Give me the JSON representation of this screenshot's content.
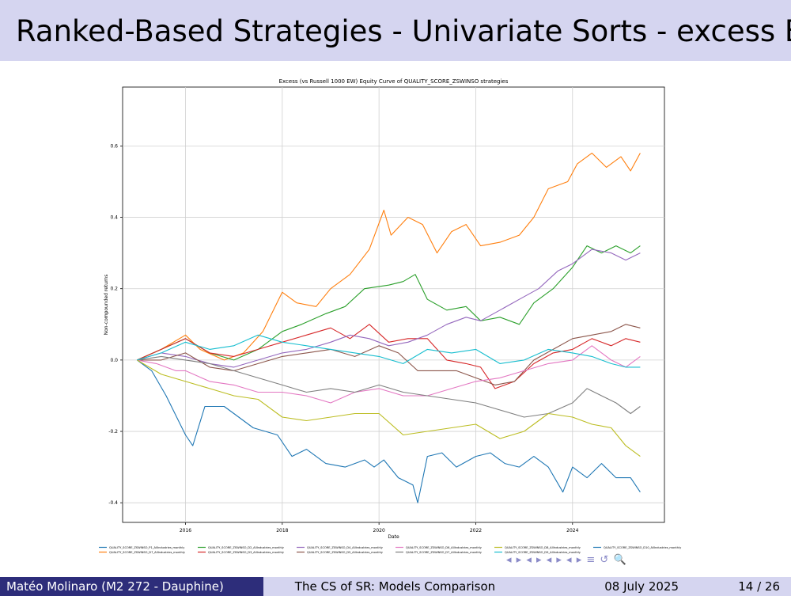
{
  "slide": {
    "title": "Ranked-Based Strategies - Univariate Sorts - excess EC"
  },
  "footer": {
    "author": "Matéo Molinaro  (M2 272 - Dauphine)",
    "talk_title": "The CS of SR: Models Comparison",
    "date": "08 July 2025",
    "page": "14 / 26"
  },
  "nav_icons": [
    "◂",
    "▸",
    "◂",
    "▸",
    "◂",
    "▸",
    "◂",
    "▸",
    "≡",
    "↺",
    "🔍"
  ],
  "chart_data": {
    "type": "line",
    "title": "Excess (vs Russell 1000 EW) Equity Curve of QUALITY_SCORE_ZSWINSO strategies",
    "xlabel": "Date",
    "ylabel": "Non-compounded returns",
    "xlim": [
      2014.7,
      2025.9
    ],
    "ylim": [
      -0.455,
      0.765
    ],
    "xticks": [
      2016,
      2018,
      2020,
      2022,
      2024
    ],
    "yticks": [
      -0.4,
      -0.2,
      0.0,
      0.2,
      0.4,
      0.6
    ],
    "grid": true,
    "legend": "bottom",
    "series": [
      {
        "name": "QUALITY_SCORE_ZSWINSO_P1_AllIndustries_monthly",
        "color": "#1f77b4",
        "x": [
          2015.0,
          2015.3,
          2015.6,
          2016.0,
          2016.15,
          2016.4,
          2016.8,
          2017.0,
          2017.4,
          2017.9,
          2018.2,
          2018.5,
          2018.9,
          2019.3,
          2019.7,
          2019.9,
          2020.1,
          2020.4,
          2020.7,
          2020.8,
          2021.0,
          2021.3,
          2021.6,
          2022.0,
          2022.3,
          2022.6,
          2022.9,
          2023.2,
          2023.5,
          2023.8,
          2024.0,
          2024.3,
          2024.6,
          2024.9,
          2025.2,
          2025.4
        ],
        "values": [
          0.0,
          -0.03,
          -0.1,
          -0.21,
          -0.24,
          -0.13,
          -0.13,
          -0.15,
          -0.19,
          -0.21,
          -0.27,
          -0.25,
          -0.29,
          -0.3,
          -0.28,
          -0.3,
          -0.28,
          -0.33,
          -0.35,
          -0.4,
          -0.27,
          -0.26,
          -0.3,
          -0.27,
          -0.26,
          -0.29,
          -0.3,
          -0.27,
          -0.3,
          -0.37,
          -0.3,
          -0.33,
          -0.29,
          -0.33,
          -0.33,
          -0.37
        ]
      },
      {
        "name": "QUALITY_SCORE_ZSWINSO_D7_AllIndustries_monthly",
        "color": "#ff7f0e",
        "x": [
          2015.0,
          2015.5,
          2016.0,
          2016.3,
          2016.8,
          2017.2,
          2017.6,
          2018.0,
          2018.3,
          2018.7,
          2019.0,
          2019.4,
          2019.8,
          2020.1,
          2020.25,
          2020.6,
          2020.9,
          2021.2,
          2021.5,
          2021.8,
          2022.1,
          2022.5,
          2022.9,
          2023.2,
          2023.5,
          2023.9,
          2024.1,
          2024.4,
          2024.7,
          2025.0,
          2025.2,
          2025.4
        ],
        "values": [
          0.0,
          0.03,
          0.07,
          0.03,
          0.0,
          0.02,
          0.08,
          0.19,
          0.16,
          0.15,
          0.2,
          0.24,
          0.31,
          0.42,
          0.35,
          0.4,
          0.38,
          0.3,
          0.36,
          0.38,
          0.32,
          0.33,
          0.35,
          0.4,
          0.48,
          0.5,
          0.55,
          0.58,
          0.54,
          0.57,
          0.53,
          0.58
        ]
      },
      {
        "name": "QUALITY_SCORE_ZSWINSO_D2_AllIndustries_monthly",
        "color": "#2ca02c",
        "x": [
          2015.0,
          2015.5,
          2016.0,
          2016.5,
          2017.0,
          2017.5,
          2018.0,
          2018.4,
          2018.9,
          2019.3,
          2019.7,
          2020.2,
          2020.5,
          2020.75,
          2021.0,
          2021.4,
          2021.8,
          2022.1,
          2022.5,
          2022.9,
          2023.2,
          2023.6,
          2024.0,
          2024.3,
          2024.6,
          2024.9,
          2025.2,
          2025.4
        ],
        "values": [
          0.0,
          0.03,
          0.06,
          0.02,
          0.0,
          0.03,
          0.08,
          0.1,
          0.13,
          0.15,
          0.2,
          0.21,
          0.22,
          0.24,
          0.17,
          0.14,
          0.15,
          0.11,
          0.12,
          0.1,
          0.16,
          0.2,
          0.26,
          0.32,
          0.3,
          0.32,
          0.3,
          0.32
        ]
      },
      {
        "name": "QUALITY_SCORE_ZSWINSO_D3_AllIndustries_monthly",
        "color": "#d62728",
        "x": [
          2015.0,
          2015.5,
          2016.0,
          2016.5,
          2017.0,
          2017.5,
          2018.0,
          2018.5,
          2019.0,
          2019.4,
          2019.8,
          2020.2,
          2020.6,
          2021.0,
          2021.4,
          2021.8,
          2022.1,
          2022.4,
          2022.8,
          2023.2,
          2023.6,
          2024.0,
          2024.4,
          2024.8,
          2025.1,
          2025.4
        ],
        "values": [
          0.0,
          0.03,
          0.06,
          0.02,
          0.01,
          0.03,
          0.05,
          0.07,
          0.09,
          0.06,
          0.1,
          0.05,
          0.06,
          0.06,
          0.0,
          -0.01,
          -0.02,
          -0.08,
          -0.06,
          -0.01,
          0.02,
          0.03,
          0.06,
          0.04,
          0.06,
          0.05
        ]
      },
      {
        "name": "QUALITY_SCORE_ZSWINSO_D4_AllIndustries_monthly",
        "color": "#9467bd",
        "x": [
          2015.0,
          2015.5,
          2016.0,
          2016.5,
          2017.0,
          2017.5,
          2018.0,
          2018.5,
          2019.0,
          2019.4,
          2019.8,
          2020.2,
          2020.6,
          2021.0,
          2021.4,
          2021.8,
          2022.1,
          2022.5,
          2022.9,
          2023.3,
          2023.7,
          2024.0,
          2024.4,
          2024.8,
          2025.1,
          2025.4
        ],
        "values": [
          0.0,
          0.02,
          0.01,
          -0.01,
          -0.02,
          0.0,
          0.02,
          0.03,
          0.05,
          0.07,
          0.06,
          0.04,
          0.05,
          0.07,
          0.1,
          0.12,
          0.11,
          0.14,
          0.17,
          0.2,
          0.25,
          0.27,
          0.31,
          0.3,
          0.28,
          0.3
        ]
      },
      {
        "name": "QUALITY_SCORE_ZSWINSO_D5_AllIndustries_monthly",
        "color": "#8c564b",
        "x": [
          2015.0,
          2015.5,
          2016.0,
          2016.5,
          2017.0,
          2017.5,
          2018.0,
          2018.5,
          2019.0,
          2019.5,
          2020.0,
          2020.4,
          2020.8,
          2021.2,
          2021.6,
          2022.0,
          2022.4,
          2022.8,
          2023.2,
          2023.6,
          2024.0,
          2024.4,
          2024.8,
          2025.1,
          2025.4
        ],
        "values": [
          0.0,
          0.0,
          0.02,
          -0.02,
          -0.03,
          -0.01,
          0.01,
          0.02,
          0.03,
          0.01,
          0.04,
          0.02,
          -0.03,
          -0.03,
          -0.03,
          -0.05,
          -0.07,
          -0.06,
          0.0,
          0.03,
          0.06,
          0.07,
          0.08,
          0.1,
          0.09
        ]
      },
      {
        "name": "QUALITY_SCORE_ZSWINSO_D6_AllIndustries_monthly",
        "color": "#e377c2",
        "x": [
          2015.0,
          2015.4,
          2015.8,
          2016.0,
          2016.5,
          2017.0,
          2017.5,
          2018.0,
          2018.5,
          2019.0,
          2019.5,
          2020.0,
          2020.5,
          2021.0,
          2021.5,
          2022.0,
          2022.5,
          2023.0,
          2023.5,
          2024.0,
          2024.4,
          2024.8,
          2025.1,
          2025.4
        ],
        "values": [
          0.0,
          -0.01,
          -0.03,
          -0.03,
          -0.06,
          -0.07,
          -0.09,
          -0.09,
          -0.1,
          -0.12,
          -0.09,
          -0.08,
          -0.1,
          -0.1,
          -0.08,
          -0.06,
          -0.05,
          -0.03,
          -0.01,
          0.0,
          0.04,
          0.0,
          -0.02,
          0.01
        ]
      },
      {
        "name": "QUALITY_SCORE_ZSWINSO_D7_AllIndustries_monthly",
        "color": "#7f7f7f",
        "x": [
          2015.0,
          2015.5,
          2016.0,
          2016.5,
          2017.0,
          2017.5,
          2018.0,
          2018.5,
          2019.0,
          2019.5,
          2020.0,
          2020.5,
          2021.0,
          2021.5,
          2022.0,
          2022.5,
          2023.0,
          2023.5,
          2024.0,
          2024.3,
          2024.6,
          2024.9,
          2025.2,
          2025.4
        ],
        "values": [
          0.0,
          0.01,
          0.0,
          -0.01,
          -0.03,
          -0.05,
          -0.07,
          -0.09,
          -0.08,
          -0.09,
          -0.07,
          -0.09,
          -0.1,
          -0.11,
          -0.12,
          -0.14,
          -0.16,
          -0.15,
          -0.12,
          -0.08,
          -0.1,
          -0.12,
          -0.15,
          -0.13
        ]
      },
      {
        "name": "QUALITY_SCORE_ZSWINSO_D8_AllIndustries_monthly",
        "color": "#bcbd22",
        "x": [
          2015.0,
          2015.5,
          2016.0,
          2016.5,
          2017.0,
          2017.5,
          2018.0,
          2018.5,
          2019.0,
          2019.5,
          2020.0,
          2020.5,
          2021.0,
          2021.5,
          2022.0,
          2022.5,
          2023.0,
          2023.5,
          2024.0,
          2024.4,
          2024.8,
          2025.1,
          2025.4
        ],
        "values": [
          0.0,
          -0.04,
          -0.06,
          -0.08,
          -0.1,
          -0.11,
          -0.16,
          -0.17,
          -0.16,
          -0.15,
          -0.15,
          -0.21,
          -0.2,
          -0.19,
          -0.18,
          -0.22,
          -0.2,
          -0.15,
          -0.16,
          -0.18,
          -0.19,
          -0.24,
          -0.27
        ]
      },
      {
        "name": "QUALITY_SCORE_ZSWINSO_D9_AllIndustries_monthly",
        "color": "#17becf",
        "x": [
          2015.0,
          2015.5,
          2016.0,
          2016.5,
          2017.0,
          2017.5,
          2018.0,
          2018.5,
          2019.0,
          2019.5,
          2020.0,
          2020.5,
          2021.0,
          2021.5,
          2022.0,
          2022.5,
          2023.0,
          2023.5,
          2024.0,
          2024.4,
          2024.8,
          2025.1,
          2025.4
        ],
        "values": [
          0.0,
          0.02,
          0.05,
          0.03,
          0.04,
          0.07,
          0.05,
          0.04,
          0.03,
          0.02,
          0.01,
          -0.01,
          0.03,
          0.02,
          0.03,
          -0.01,
          0.0,
          0.03,
          0.02,
          0.01,
          -0.01,
          -0.02,
          -0.02
        ]
      },
      {
        "name": "QUALITY_SCORE_ZSWINSO_D10_AllIndustries_monthly",
        "color": "#1f77b4",
        "x": [],
        "values": []
      }
    ]
  }
}
